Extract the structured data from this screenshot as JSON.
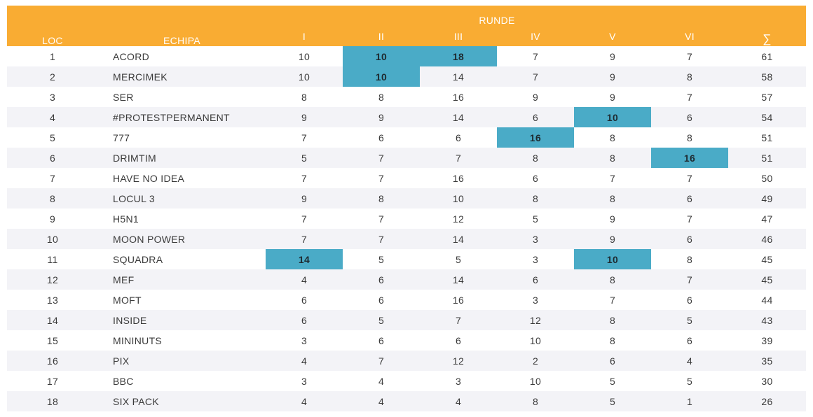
{
  "header": {
    "loc": "LOC",
    "team": "ECHIPA",
    "rounds_group": "RUNDE",
    "rounds": [
      "I",
      "II",
      "III",
      "IV",
      "V",
      "VI"
    ],
    "total": "∑"
  },
  "colors": {
    "header_bg": "#f9ac33",
    "highlight": "#4aabc7",
    "row_alt": "#f3f3f7"
  },
  "rows": [
    {
      "loc": "1",
      "team": "ACORD",
      "scores": [
        "10",
        "10",
        "18",
        "7",
        "9",
        "7"
      ],
      "total": "61",
      "highlight": [
        1,
        2
      ]
    },
    {
      "loc": "2",
      "team": "MERCIMEK",
      "scores": [
        "10",
        "10",
        "14",
        "7",
        "9",
        "8"
      ],
      "total": "58",
      "highlight": [
        1
      ]
    },
    {
      "loc": "3",
      "team": "SER",
      "scores": [
        "8",
        "8",
        "16",
        "9",
        "9",
        "7"
      ],
      "total": "57",
      "highlight": []
    },
    {
      "loc": "4",
      "team": "#PROTESTPERMANENT",
      "scores": [
        "9",
        "9",
        "14",
        "6",
        "10",
        "6"
      ],
      "total": "54",
      "highlight": [
        4
      ]
    },
    {
      "loc": "5",
      "team": "777",
      "scores": [
        "7",
        "6",
        "6",
        "16",
        "8",
        "8"
      ],
      "total": "51",
      "highlight": [
        3
      ]
    },
    {
      "loc": "6",
      "team": "DRIMTIM",
      "scores": [
        "5",
        "7",
        "7",
        "8",
        "8",
        "16"
      ],
      "total": "51",
      "highlight": [
        5
      ]
    },
    {
      "loc": "7",
      "team": "HAVE NO IDEA",
      "scores": [
        "7",
        "7",
        "16",
        "6",
        "7",
        "7"
      ],
      "total": "50",
      "highlight": []
    },
    {
      "loc": "8",
      "team": "LOCUL 3",
      "scores": [
        "9",
        "8",
        "10",
        "8",
        "8",
        "6"
      ],
      "total": "49",
      "highlight": []
    },
    {
      "loc": "9",
      "team": "H5N1",
      "scores": [
        "7",
        "7",
        "12",
        "5",
        "9",
        "7"
      ],
      "total": "47",
      "highlight": []
    },
    {
      "loc": "10",
      "team": "MOON POWER",
      "scores": [
        "7",
        "7",
        "14",
        "3",
        "9",
        "6"
      ],
      "total": "46",
      "highlight": []
    },
    {
      "loc": "11",
      "team": "SQUADRA",
      "scores": [
        "14",
        "5",
        "5",
        "3",
        "10",
        "8"
      ],
      "total": "45",
      "highlight": [
        0,
        4
      ]
    },
    {
      "loc": "12",
      "team": "MEF",
      "scores": [
        "4",
        "6",
        "14",
        "6",
        "8",
        "7"
      ],
      "total": "45",
      "highlight": []
    },
    {
      "loc": "13",
      "team": "MOFT",
      "scores": [
        "6",
        "6",
        "16",
        "3",
        "7",
        "6"
      ],
      "total": "44",
      "highlight": []
    },
    {
      "loc": "14",
      "team": "INSIDE",
      "scores": [
        "6",
        "5",
        "7",
        "12",
        "8",
        "5"
      ],
      "total": "43",
      "highlight": []
    },
    {
      "loc": "15",
      "team": "MININUTS",
      "scores": [
        "3",
        "6",
        "6",
        "10",
        "8",
        "6"
      ],
      "total": "39",
      "highlight": []
    },
    {
      "loc": "16",
      "team": "PIX",
      "scores": [
        "4",
        "7",
        "12",
        "2",
        "6",
        "4"
      ],
      "total": "35",
      "highlight": []
    },
    {
      "loc": "17",
      "team": "BBC",
      "scores": [
        "3",
        "4",
        "3",
        "10",
        "5",
        "5"
      ],
      "total": "30",
      "highlight": []
    },
    {
      "loc": "18",
      "team": "SIX PACK",
      "scores": [
        "4",
        "4",
        "4",
        "8",
        "5",
        "1"
      ],
      "total": "26",
      "highlight": []
    }
  ]
}
